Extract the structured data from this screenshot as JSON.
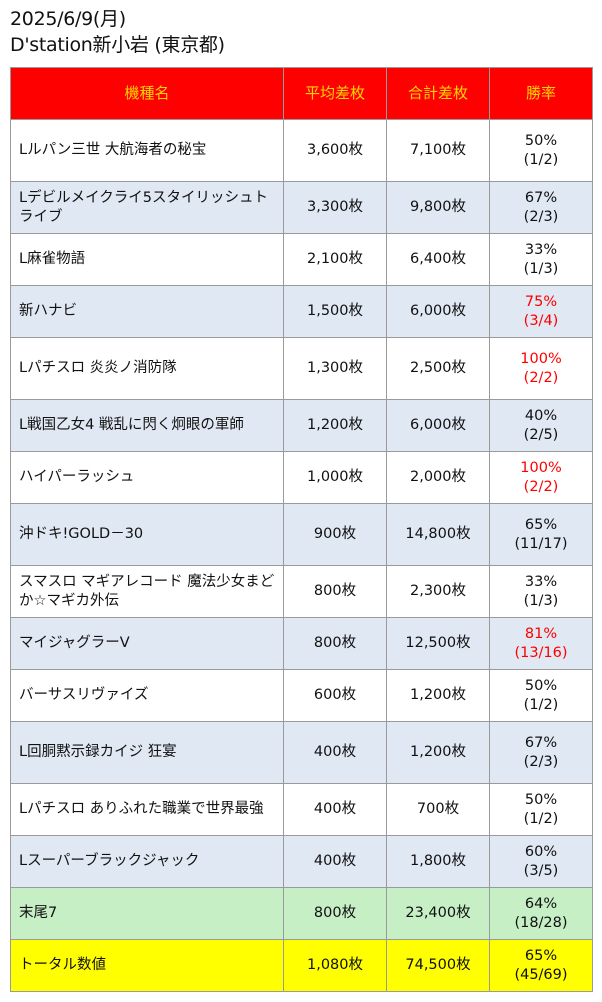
{
  "header": {
    "date": "2025/6/9(月)",
    "store": "D'station新小岩 (東京都)"
  },
  "table": {
    "columns": [
      "機種名",
      "平均差枚",
      "合計差枚",
      "勝率"
    ],
    "rows": [
      {
        "name": "Lルパン三世 大航海者の秘宝",
        "avg": "3,600枚",
        "total": "7,100枚",
        "pct": "50%",
        "ratio": "(1/2)",
        "highlight": false
      },
      {
        "name": "Lデビルメイクライ5スタイリッシュトライブ",
        "avg": "3,300枚",
        "total": "9,800枚",
        "pct": "67%",
        "ratio": "(2/3)",
        "highlight": false
      },
      {
        "name": "L麻雀物語",
        "avg": "2,100枚",
        "total": "6,400枚",
        "pct": "33%",
        "ratio": "(1/3)",
        "highlight": false
      },
      {
        "name": "新ハナビ",
        "avg": "1,500枚",
        "total": "6,000枚",
        "pct": "75%",
        "ratio": "(3/4)",
        "highlight": true
      },
      {
        "name": "Lパチスロ 炎炎ノ消防隊",
        "avg": "1,300枚",
        "total": "2,500枚",
        "pct": "100%",
        "ratio": "(2/2)",
        "highlight": true
      },
      {
        "name": "L戦国乙女4 戦乱に閃く炯眼の軍師",
        "avg": "1,200枚",
        "total": "6,000枚",
        "pct": "40%",
        "ratio": "(2/5)",
        "highlight": false
      },
      {
        "name": "ハイパーラッシュ",
        "avg": "1,000枚",
        "total": "2,000枚",
        "pct": "100%",
        "ratio": "(2/2)",
        "highlight": true
      },
      {
        "name": "沖ドキ!GOLD－30",
        "avg": "900枚",
        "total": "14,800枚",
        "pct": "65%",
        "ratio": "(11/17)",
        "highlight": false
      },
      {
        "name": "スマスロ マギアレコード 魔法少女まどか☆マギカ外伝",
        "avg": "800枚",
        "total": "2,300枚",
        "pct": "33%",
        "ratio": "(1/3)",
        "highlight": false
      },
      {
        "name": "マイジャグラーV",
        "avg": "800枚",
        "total": "12,500枚",
        "pct": "81%",
        "ratio": "(13/16)",
        "highlight": true
      },
      {
        "name": "バーサスリヴァイズ",
        "avg": "600枚",
        "total": "1,200枚",
        "pct": "50%",
        "ratio": "(1/2)",
        "highlight": false
      },
      {
        "name": "L回胴黙示録カイジ 狂宴",
        "avg": "400枚",
        "total": "1,200枚",
        "pct": "67%",
        "ratio": "(2/3)",
        "highlight": false
      },
      {
        "name": "Lパチスロ ありふれた職業で世界最強",
        "avg": "400枚",
        "total": "700枚",
        "pct": "50%",
        "ratio": "(1/2)",
        "highlight": false
      },
      {
        "name": "Lスーパーブラックジャック",
        "avg": "400枚",
        "total": "1,800枚",
        "pct": "60%",
        "ratio": "(3/5)",
        "highlight": false
      }
    ],
    "suffix_row": {
      "name": "末尾7",
      "avg": "800枚",
      "total": "23,400枚",
      "pct": "64%",
      "ratio": "(18/28)"
    },
    "total_row": {
      "name": "トータル数値",
      "avg": "1,080枚",
      "total": "74,500枚",
      "pct": "65%",
      "ratio": "(45/69)"
    }
  },
  "colors": {
    "header_bg": "#ff0000",
    "header_text": "#ffd600",
    "row_alt": "#dfe8f3",
    "suffix_bg": "#c6efc6",
    "total_bg": "#ffff00",
    "highlight_text": "#ff0000"
  }
}
